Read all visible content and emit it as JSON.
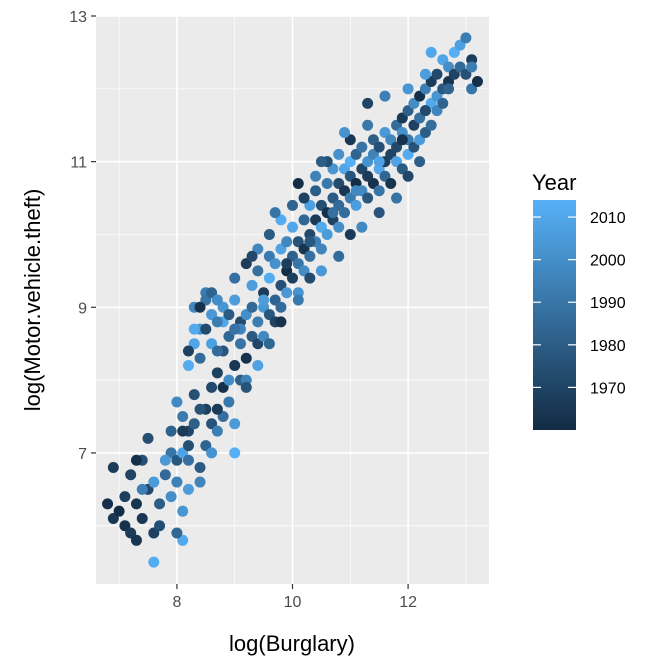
{
  "chart_data": {
    "type": "scatter",
    "title": "",
    "xlabel": "log(Burglary)",
    "ylabel": "log(Motor.vehicle.theft)",
    "xlim": [
      6.6,
      13.4
    ],
    "ylim": [
      5.2,
      13.0
    ],
    "x_ticks": [
      8,
      10,
      12
    ],
    "x_tick_labels": [
      "8",
      "10",
      "12"
    ],
    "y_ticks": [
      7,
      9,
      11,
      13
    ],
    "y_tick_labels": [
      "7",
      "9",
      "11",
      "13"
    ],
    "grid": true,
    "background": "#ebebeb",
    "legend": {
      "title": "Year",
      "position": "right",
      "type": "colorbar",
      "range": [
        1960,
        2014
      ],
      "breaks": [
        1970,
        1980,
        1990,
        2000,
        2010
      ],
      "break_labels": [
        "1970",
        "1980",
        "1990",
        "2000",
        "2010"
      ],
      "color_low": "#132b43",
      "color_high": "#56b1f7"
    },
    "points": [
      [
        6.8,
        6.3,
        1962
      ],
      [
        6.9,
        6.1,
        1965
      ],
      [
        7.0,
        6.2,
        1961
      ],
      [
        7.1,
        6.0,
        1963
      ],
      [
        7.2,
        5.9,
        1966
      ],
      [
        7.3,
        5.8,
        1964
      ],
      [
        7.1,
        6.4,
        1968
      ],
      [
        6.9,
        6.8,
        1967
      ],
      [
        7.2,
        6.7,
        1970
      ],
      [
        7.4,
        6.1,
        1965
      ],
      [
        7.5,
        6.5,
        1972
      ],
      [
        7.4,
        6.9,
        1975
      ],
      [
        7.6,
        5.9,
        1969
      ],
      [
        7.6,
        5.5,
        2012
      ],
      [
        7.7,
        6.3,
        1980
      ],
      [
        7.5,
        7.2,
        1974
      ],
      [
        7.8,
        6.7,
        1985
      ],
      [
        7.9,
        7.0,
        1990
      ],
      [
        7.6,
        6.6,
        2005
      ],
      [
        7.3,
        6.9,
        1962
      ],
      [
        7.9,
        6.4,
        2000
      ],
      [
        8.0,
        6.6,
        1995
      ],
      [
        8.0,
        6.9,
        1978
      ],
      [
        7.9,
        7.3,
        1982
      ],
      [
        8.1,
        7.0,
        2008
      ],
      [
        8.1,
        6.2,
        2003
      ],
      [
        8.1,
        5.8,
        2011
      ],
      [
        8.2,
        6.9,
        1988
      ],
      [
        8.2,
        7.3,
        1971
      ],
      [
        8.1,
        7.5,
        1992
      ],
      [
        8.2,
        6.5,
        2006
      ],
      [
        8.0,
        7.7,
        1998
      ],
      [
        8.3,
        7.8,
        1975
      ],
      [
        8.2,
        8.2,
        2012
      ],
      [
        8.3,
        8.5,
        2009
      ],
      [
        8.4,
        8.7,
        2001
      ],
      [
        8.3,
        9.0,
        1997
      ],
      [
        8.5,
        9.2,
        1993
      ],
      [
        8.6,
        8.9,
        2004
      ],
      [
        8.5,
        9.1,
        1990
      ],
      [
        8.4,
        8.3,
        1986
      ],
      [
        8.3,
        7.4,
        1981
      ],
      [
        8.4,
        6.8,
        1979
      ],
      [
        8.5,
        7.1,
        1983
      ],
      [
        8.6,
        7.4,
        1976
      ],
      [
        8.5,
        7.6,
        1968
      ],
      [
        8.6,
        7.9,
        1972
      ],
      [
        8.7,
        8.1,
        1969
      ],
      [
        8.7,
        7.3,
        1994
      ],
      [
        8.6,
        7.0,
        2002
      ],
      [
        8.6,
        8.5,
        2007
      ],
      [
        8.8,
        7.5,
        1987
      ],
      [
        8.8,
        7.9,
        1962
      ],
      [
        8.8,
        8.4,
        1977
      ],
      [
        8.9,
        8.0,
        1999
      ],
      [
        8.9,
        7.7,
        1991
      ],
      [
        9.0,
        8.2,
        1965
      ],
      [
        8.9,
        8.6,
        1984
      ],
      [
        8.8,
        8.8,
        2010
      ],
      [
        8.4,
        6.6,
        1996
      ],
      [
        8.2,
        7.1,
        1974
      ],
      [
        8.7,
        7.6,
        1966
      ],
      [
        9.0,
        7.4,
        2005
      ],
      [
        9.0,
        7.0,
        2013
      ],
      [
        9.1,
        8.5,
        1989
      ],
      [
        9.1,
        8.8,
        1973
      ],
      [
        9.1,
        8.0,
        1981
      ],
      [
        9.2,
        8.3,
        1963
      ],
      [
        9.0,
        8.7,
        2011
      ],
      [
        9.2,
        8.9,
        2000
      ],
      [
        9.3,
        9.0,
        1985
      ],
      [
        9.3,
        8.6,
        1979
      ],
      [
        9.2,
        8.0,
        1995
      ],
      [
        9.4,
        8.5,
        1971
      ],
      [
        9.3,
        9.3,
        2006
      ],
      [
        9.4,
        8.8,
        1993
      ],
      [
        9.5,
        9.2,
        1967
      ],
      [
        9.4,
        9.5,
        1988
      ],
      [
        9.5,
        9.0,
        2003
      ],
      [
        9.6,
        8.9,
        1978
      ],
      [
        9.5,
        8.6,
        1998
      ],
      [
        9.6,
        9.4,
        2012
      ],
      [
        9.6,
        9.7,
        1992
      ],
      [
        9.7,
        9.1,
        1983
      ],
      [
        9.7,
        8.8,
        1970
      ],
      [
        9.7,
        9.6,
        2001
      ],
      [
        9.8,
        9.3,
        1975
      ],
      [
        9.8,
        9.8,
        2008
      ],
      [
        9.8,
        9.0,
        1986
      ],
      [
        9.9,
        9.5,
        1961
      ],
      [
        9.9,
        9.9,
        1997
      ],
      [
        9.9,
        9.2,
        2004
      ],
      [
        10.0,
        9.7,
        1982
      ],
      [
        10.0,
        9.4,
        1968
      ],
      [
        10.0,
        10.1,
        2010
      ],
      [
        10.1,
        9.6,
        1990
      ],
      [
        10.1,
        9.9,
        1976
      ],
      [
        10.1,
        9.2,
        2002
      ],
      [
        10.2,
        10.2,
        1984
      ],
      [
        10.2,
        9.8,
        1964
      ],
      [
        10.2,
        9.5,
        1999
      ],
      [
        10.3,
        10.0,
        1972
      ],
      [
        10.3,
        10.4,
        2007
      ],
      [
        10.3,
        9.7,
        1988
      ],
      [
        10.4,
        10.2,
        1966
      ],
      [
        10.4,
        9.9,
        1994
      ],
      [
        10.4,
        10.6,
        1980
      ],
      [
        10.5,
        10.1,
        2011
      ],
      [
        10.5,
        10.4,
        1974
      ],
      [
        10.5,
        9.8,
        1996
      ],
      [
        10.6,
        10.3,
        1962
      ],
      [
        10.6,
        10.7,
        1991
      ],
      [
        10.6,
        10.0,
        2005
      ],
      [
        10.7,
        10.5,
        1979
      ],
      [
        10.7,
        10.2,
        1969
      ],
      [
        10.7,
        10.9,
        2003
      ],
      [
        10.8,
        10.4,
        1985
      ],
      [
        10.8,
        10.7,
        1973
      ],
      [
        10.8,
        10.1,
        2000
      ],
      [
        10.9,
        10.6,
        1965
      ],
      [
        10.9,
        10.9,
        2009
      ],
      [
        10.9,
        10.3,
        1987
      ],
      [
        11.0,
        10.8,
        1977
      ],
      [
        11.0,
        11.0,
        2013
      ],
      [
        11.0,
        10.5,
        1993
      ],
      [
        11.1,
        10.7,
        1961
      ],
      [
        11.1,
        11.1,
        1983
      ],
      [
        11.1,
        10.4,
        2006
      ],
      [
        11.2,
        10.9,
        1971
      ],
      [
        11.2,
        10.6,
        1998
      ],
      [
        11.2,
        11.2,
        1989
      ],
      [
        11.3,
        10.8,
        1967
      ],
      [
        11.3,
        11.0,
        2002
      ],
      [
        11.3,
        10.5,
        1978
      ],
      [
        11.4,
        11.1,
        1995
      ],
      [
        11.4,
        10.7,
        1963
      ],
      [
        11.4,
        11.3,
        1981
      ],
      [
        11.5,
        10.9,
        2010
      ],
      [
        11.5,
        11.2,
        1975
      ],
      [
        11.5,
        10.6,
        1990
      ],
      [
        11.6,
        11.0,
        1968
      ],
      [
        11.6,
        11.4,
        2004
      ],
      [
        11.6,
        10.8,
        1984
      ],
      [
        11.7,
        11.1,
        1970
      ],
      [
        11.7,
        11.3,
        1997
      ],
      [
        11.7,
        10.7,
        1964
      ],
      [
        11.8,
        11.5,
        1986
      ],
      [
        11.8,
        11.0,
        2008
      ],
      [
        11.8,
        11.2,
        1972
      ],
      [
        11.9,
        11.4,
        2001
      ],
      [
        11.9,
        10.9,
        1979
      ],
      [
        11.9,
        11.6,
        1966
      ],
      [
        12.0,
        11.3,
        1992
      ],
      [
        12.0,
        11.7,
        1982
      ],
      [
        12.0,
        11.1,
        2012
      ],
      [
        12.1,
        11.5,
        1969
      ],
      [
        12.1,
        11.8,
        1999
      ],
      [
        12.1,
        11.2,
        1976
      ],
      [
        12.2,
        11.6,
        1988
      ],
      [
        12.2,
        11.9,
        1962
      ],
      [
        12.2,
        11.3,
        2005
      ],
      [
        12.3,
        11.7,
        1974
      ],
      [
        12.3,
        12.0,
        1994
      ],
      [
        12.3,
        11.4,
        1980
      ],
      [
        12.4,
        11.8,
        2011
      ],
      [
        12.4,
        12.1,
        1967
      ],
      [
        12.4,
        11.5,
        1987
      ],
      [
        12.5,
        11.9,
        2003
      ],
      [
        12.5,
        12.2,
        1972
      ],
      [
        12.5,
        11.7,
        1996
      ],
      [
        12.6,
        12.0,
        1978
      ],
      [
        12.6,
        12.4,
        2009
      ],
      [
        12.6,
        11.8,
        1983
      ],
      [
        12.7,
        12.1,
        1964
      ],
      [
        12.7,
        12.3,
        2000
      ],
      [
        12.8,
        12.2,
        1970
      ],
      [
        12.8,
        12.5,
        2013
      ],
      [
        12.9,
        12.3,
        1985
      ],
      [
        12.9,
        12.6,
        2007
      ],
      [
        13.0,
        12.7,
        1993
      ],
      [
        13.0,
        12.2,
        1975
      ],
      [
        13.1,
        12.4,
        1968
      ],
      [
        13.1,
        12.0,
        1990
      ],
      [
        13.2,
        12.1,
        1962
      ],
      [
        12.4,
        12.5,
        2010
      ],
      [
        12.3,
        12.2,
        2006
      ],
      [
        12.2,
        11.0,
        1981
      ],
      [
        12.0,
        10.8,
        1971
      ],
      [
        11.8,
        10.5,
        1989
      ],
      [
        11.5,
        10.3,
        1977
      ],
      [
        11.2,
        10.1,
        1998
      ],
      [
        11.0,
        10.0,
        1966
      ],
      [
        10.8,
        9.7,
        1986
      ],
      [
        10.5,
        9.5,
        2004
      ],
      [
        10.3,
        9.4,
        1973
      ],
      [
        10.1,
        9.1,
        1992
      ],
      [
        9.8,
        8.8,
        1963
      ],
      [
        9.6,
        8.5,
        1984
      ],
      [
        9.4,
        8.2,
        2008
      ],
      [
        9.2,
        7.9,
        1976
      ],
      [
        11.0,
        11.3,
        1965
      ],
      [
        11.3,
        11.5,
        1991
      ],
      [
        10.8,
        11.1,
        2001
      ],
      [
        10.6,
        11.0,
        1974
      ],
      [
        10.4,
        10.8,
        1995
      ],
      [
        10.2,
        10.5,
        1969
      ],
      [
        10.0,
        10.4,
        1983
      ],
      [
        9.8,
        10.2,
        2012
      ],
      [
        9.6,
        10.0,
        1979
      ],
      [
        9.4,
        9.8,
        1997
      ],
      [
        9.2,
        9.6,
        1967
      ],
      [
        9.0,
        9.4,
        1988
      ],
      [
        9.0,
        9.1,
        2006
      ],
      [
        9.3,
        9.7,
        1972
      ],
      [
        9.7,
        10.3,
        1990
      ],
      [
        10.1,
        10.7,
        1961
      ],
      [
        10.5,
        11.0,
        1980
      ],
      [
        10.9,
        11.4,
        2002
      ],
      [
        11.3,
        11.8,
        1970
      ],
      [
        11.6,
        11.9,
        1994
      ],
      [
        7.3,
        6.3,
        1964
      ],
      [
        7.7,
        6.0,
        1974
      ],
      [
        8.0,
        5.9,
        1984
      ],
      [
        7.4,
        6.5,
        1994
      ],
      [
        7.8,
        6.9,
        2004
      ],
      [
        8.1,
        7.3,
        1966
      ],
      [
        8.4,
        7.6,
        1976
      ],
      [
        8.7,
        8.4,
        1986
      ],
      [
        9.1,
        8.7,
        1996
      ],
      [
        9.5,
        9.1,
        2006
      ],
      [
        9.9,
        9.6,
        1968
      ],
      [
        10.3,
        9.9,
        1978
      ],
      [
        10.7,
        10.3,
        1988
      ],
      [
        11.1,
        10.6,
        1998
      ],
      [
        11.5,
        11.0,
        2008
      ],
      [
        11.9,
        11.3,
        1963
      ],
      [
        12.3,
        11.7,
        1973
      ],
      [
        12.7,
        12.0,
        1983
      ],
      [
        13.1,
        12.3,
        1993
      ],
      [
        12.0,
        12.0,
        2003
      ],
      [
        8.4,
        9.0,
        1963
      ],
      [
        8.5,
        8.7,
        1973
      ],
      [
        8.6,
        9.2,
        1983
      ],
      [
        8.7,
        8.8,
        1993
      ],
      [
        8.8,
        9.0,
        2003
      ],
      [
        8.3,
        8.7,
        2011
      ],
      [
        8.2,
        8.4,
        1969
      ],
      [
        8.9,
        8.9,
        1979
      ],
      [
        9.0,
        8.7,
        1989
      ],
      [
        8.7,
        9.1,
        1999
      ]
    ]
  }
}
